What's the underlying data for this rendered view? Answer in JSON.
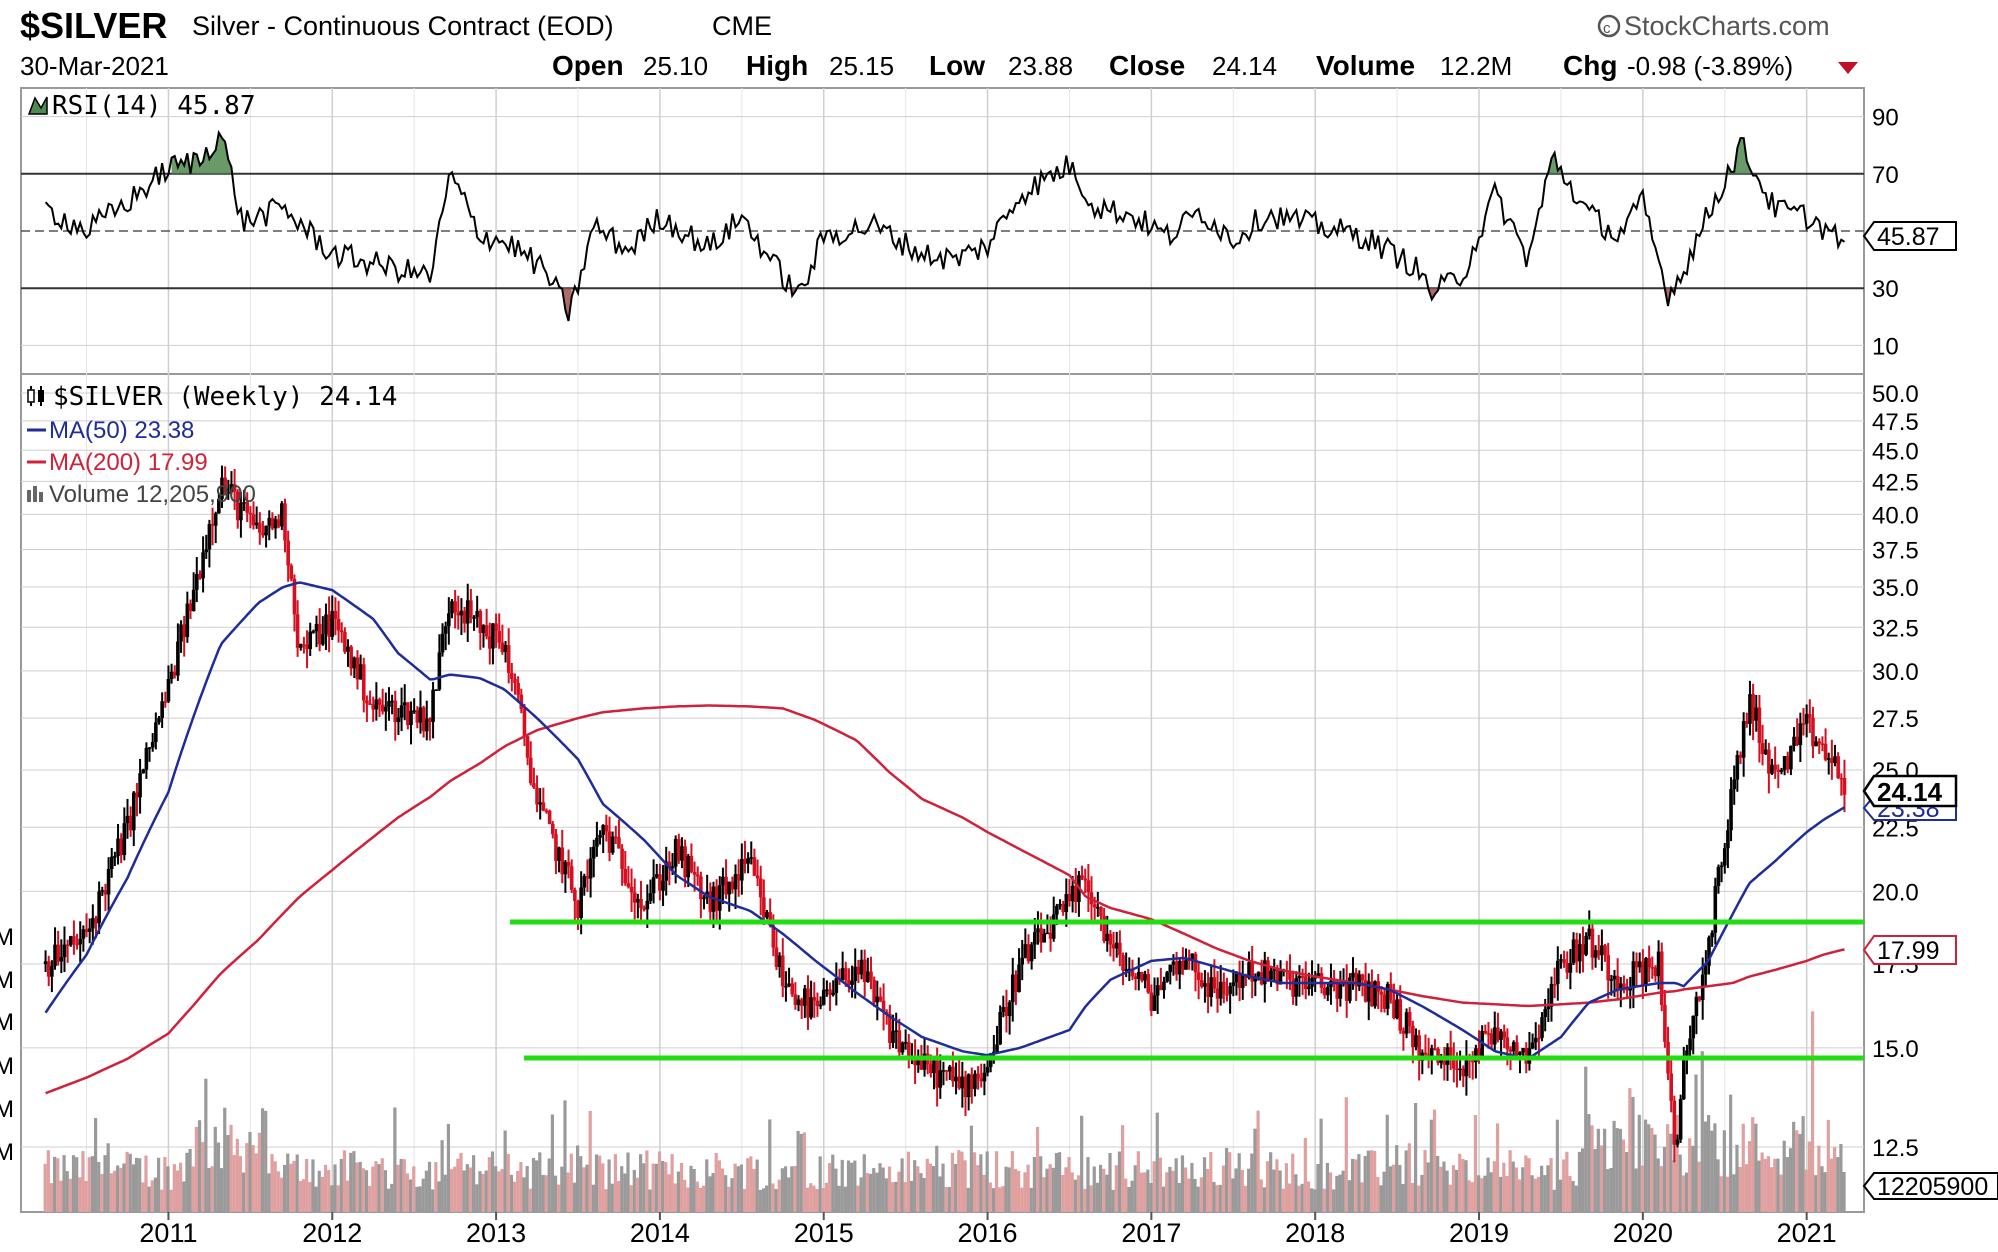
{
  "header": {
    "symbol": "$SILVER",
    "description": "Silver - Continuous Contract (EOD)",
    "exchange": "CME",
    "brand": "StockCharts.com",
    "date": "30-Mar-2021",
    "open_label": "Open",
    "open_value": "25.10",
    "high_label": "High",
    "high_value": "25.15",
    "low_label": "Low",
    "low_value": "23.88",
    "close_label": "Close",
    "close_value": "24.14",
    "volume_label": "Volume",
    "volume_value": "12.2M",
    "chg_label": "Chg",
    "chg_value": "-0.98 (-3.89%)"
  },
  "rsi_panel": {
    "legend": "RSI(14) 45.87",
    "tag": "45.87",
    "ticks": [
      "90",
      "70",
      "30",
      "10"
    ]
  },
  "price_panel": {
    "legend_title": "$SILVER (Weekly) 24.14",
    "legend_ma50": "MA(50) 23.38",
    "legend_ma200": "MA(200) 17.99",
    "legend_volume": "Volume 12,205,900",
    "tag_close": "24.14",
    "tag_ma50": "23.38",
    "tag_ma200": "17.99",
    "tag_volume": "12205900",
    "ticks": [
      "50.0",
      "47.5",
      "45.0",
      "42.5",
      "40.0",
      "37.5",
      "35.0",
      "32.5",
      "30.0",
      "27.5",
      "25.0",
      "22.5",
      "20.0",
      "17.5",
      "15.0",
      "12.5"
    ],
    "vol_axis_marks": [
      "M",
      "M",
      "M",
      "M",
      "M",
      "M"
    ]
  },
  "x_axis": {
    "years": [
      "2011",
      "2012",
      "2013",
      "2014",
      "2015",
      "2016",
      "2017",
      "2018",
      "2019",
      "2020",
      "2021"
    ]
  },
  "colors": {
    "up": "#000000",
    "down": "#d40f1f",
    "ma50": "#1f2d99",
    "ma200": "#d0213a",
    "support_lines": "#22dd11",
    "rsi_line": "#000000",
    "rsi_over_fill": "#4f8a4f",
    "rsi_under_fill": "#a05050",
    "vol_up": "#9a9a9a",
    "vol_down": "#e0a0a0",
    "grid": "#cfcfcf"
  },
  "chart_data": [
    {
      "type": "line",
      "title": "RSI(14)",
      "ylim": [
        0,
        100
      ],
      "reference_lines": [
        70,
        50,
        30
      ],
      "x": [
        2010.25,
        2010.5,
        2010.75,
        2011.0,
        2011.2,
        2011.32,
        2011.45,
        2011.7,
        2012.0,
        2012.3,
        2012.6,
        2012.72,
        2012.9,
        2013.1,
        2013.3,
        2013.45,
        2013.6,
        2013.8,
        2014.0,
        2014.3,
        2014.5,
        2014.7,
        2014.85,
        2015.0,
        2015.3,
        2015.6,
        2015.8,
        2016.0,
        2016.2,
        2016.5,
        2016.65,
        2016.9,
        2017.1,
        2017.3,
        2017.5,
        2017.7,
        2018.0,
        2018.3,
        2018.6,
        2018.72,
        2018.9,
        2019.1,
        2019.3,
        2019.45,
        2019.65,
        2019.85,
        2020.0,
        2020.15,
        2020.22,
        2020.4,
        2020.6,
        2020.8,
        2021.0,
        2021.24
      ],
      "series": [
        {
          "values": [
            58,
            50,
            60,
            72,
            75,
            85,
            53,
            58,
            42,
            38,
            34,
            70,
            49,
            45,
            36,
            21,
            52,
            43,
            55,
            44,
            55,
            38,
            27,
            48,
            52,
            42,
            40,
            45,
            63,
            73,
            59,
            55,
            48,
            57,
            47,
            56,
            52,
            48,
            38,
            28,
            35,
            63,
            40,
            76,
            57,
            48,
            60,
            28,
            33,
            56,
            80,
            58,
            55,
            45.87
          ]
        }
      ]
    },
    {
      "type": "line",
      "title": "$SILVER (Weekly) 24.14",
      "x": [
        2010.25,
        2010.5,
        2010.75,
        2011.0,
        2011.15,
        2011.32,
        2011.55,
        2011.7,
        2011.8,
        2012.0,
        2012.25,
        2012.4,
        2012.6,
        2012.72,
        2012.9,
        2013.05,
        2013.25,
        2013.5,
        2013.65,
        2013.9,
        2014.1,
        2014.3,
        2014.55,
        2014.75,
        2014.95,
        2015.2,
        2015.4,
        2015.6,
        2015.85,
        2016.0,
        2016.2,
        2016.5,
        2016.6,
        2016.75,
        2017.0,
        2017.2,
        2017.4,
        2017.6,
        2017.8,
        2018.0,
        2018.25,
        2018.45,
        2018.65,
        2018.9,
        2019.1,
        2019.3,
        2019.5,
        2019.67,
        2019.85,
        2020.1,
        2020.2,
        2020.25,
        2020.4,
        2020.55,
        2020.65,
        2020.8,
        2021.0,
        2021.1,
        2021.24
      ],
      "ylim": [
        11,
        50
      ],
      "log_scale": true,
      "series": [
        {
          "name": "$SILVER (Weekly)",
          "values": [
            17.5,
            18.4,
            22.5,
            29.0,
            34.5,
            42.5,
            38.5,
            40.0,
            31.0,
            33.0,
            28.0,
            28.0,
            27.5,
            34.5,
            32.5,
            31.5,
            23.5,
            19.5,
            22.5,
            19.5,
            21.5,
            19.5,
            21.0,
            17.0,
            16.0,
            17.5,
            15.5,
            14.5,
            14.0,
            14.5,
            17.5,
            19.5,
            20.5,
            18.0,
            16.5,
            17.8,
            16.5,
            17.3,
            17.0,
            16.8,
            16.8,
            16.5,
            14.8,
            14.6,
            15.5,
            14.8,
            17.5,
            18.3,
            17.0,
            17.5,
            11.8,
            14.5,
            18.0,
            24.0,
            28.5,
            24.5,
            27.0,
            26.0,
            24.14
          ]
        },
        {
          "name": "MA(50)",
          "values": [
            16.0,
            17.8,
            20.5,
            24.0,
            27.5,
            31.5,
            34.0,
            35.0,
            35.3,
            34.8,
            33.0,
            31.0,
            29.5,
            29.8,
            29.6,
            29.0,
            27.5,
            25.5,
            23.5,
            22.0,
            20.6,
            19.8,
            19.3,
            18.5,
            17.6,
            16.6,
            15.9,
            15.3,
            14.9,
            14.8,
            15.0,
            15.5,
            16.2,
            17.0,
            17.6,
            17.7,
            17.4,
            17.1,
            16.9,
            16.9,
            16.9,
            16.7,
            16.2,
            15.5,
            14.9,
            14.7,
            15.3,
            16.3,
            16.7,
            16.9,
            16.9,
            16.8,
            17.6,
            19.2,
            20.3,
            21.1,
            22.3,
            22.8,
            23.38
          ]
        },
        {
          "name": "MA(200)",
          "values": [
            13.8,
            14.2,
            14.7,
            15.4,
            16.2,
            17.2,
            18.3,
            19.2,
            19.8,
            20.8,
            22.1,
            22.9,
            23.8,
            24.5,
            25.3,
            26.1,
            26.9,
            27.5,
            27.8,
            28.0,
            28.1,
            28.15,
            28.1,
            28.0,
            27.4,
            26.4,
            24.9,
            23.7,
            22.9,
            22.3,
            21.6,
            20.6,
            19.8,
            19.4,
            19.0,
            18.5,
            18.0,
            17.6,
            17.3,
            17.1,
            16.9,
            16.7,
            16.5,
            16.3,
            16.25,
            16.2,
            16.25,
            16.3,
            16.4,
            16.6,
            16.65,
            16.7,
            16.8,
            16.9,
            17.1,
            17.3,
            17.6,
            17.8,
            17.99
          ]
        }
      ]
    }
  ]
}
